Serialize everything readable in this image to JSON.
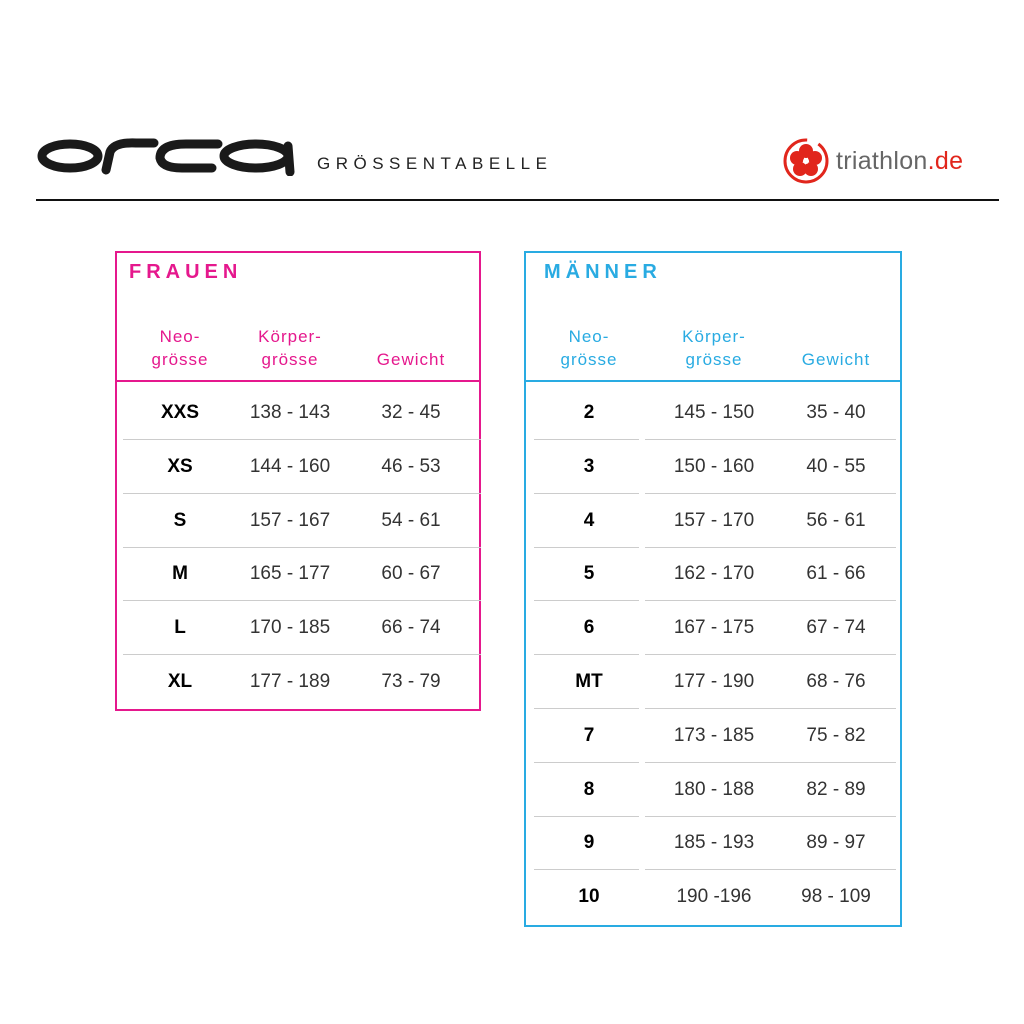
{
  "header": {
    "brand": "orca",
    "title": "GRÖSSENTABELLE",
    "partner": {
      "name": "triathlon",
      "tld": ".de"
    }
  },
  "colors": {
    "women": "#e5188d",
    "men": "#29abe2",
    "partner_red": "#e1261c"
  },
  "women": {
    "title": "FRAUEN",
    "columns": [
      {
        "l1": "Neo-",
        "l2": "grösse"
      },
      {
        "l1": "Körper-",
        "l2": "grösse"
      },
      {
        "l1": "",
        "l2": "Gewicht"
      }
    ],
    "rows": [
      [
        "XXS",
        "138 - 143",
        "32 - 45"
      ],
      [
        "XS",
        "144 - 160",
        "46 - 53"
      ],
      [
        "S",
        "157 - 167",
        "54 - 61"
      ],
      [
        "M",
        "165 - 177",
        "60 - 67"
      ],
      [
        "L",
        "170 - 185",
        "66 - 74"
      ],
      [
        "XL",
        "177 - 189",
        "73 - 79"
      ]
    ]
  },
  "men": {
    "title": "MÄNNER",
    "columns": [
      {
        "l1": "Neo-",
        "l2": "grösse"
      },
      {
        "l1": "Körper-",
        "l2": "grösse"
      },
      {
        "l1": "",
        "l2": "Gewicht"
      }
    ],
    "rows": [
      [
        "2",
        "145 - 150",
        "35 - 40"
      ],
      [
        "3",
        "150 - 160",
        "40 - 55"
      ],
      [
        "4",
        "157 - 170",
        "56 - 61"
      ],
      [
        "5",
        "162 - 170",
        "61 - 66"
      ],
      [
        "6",
        "167 - 175",
        "67 - 74"
      ],
      [
        "MT",
        "177 - 190",
        "68 - 76"
      ],
      [
        "7",
        "173 - 185",
        "75 - 82"
      ],
      [
        "8",
        "180 - 188",
        "82 - 89"
      ],
      [
        "9",
        "185 - 193",
        "89 - 97"
      ],
      [
        "10",
        "190 -196",
        "98 - 109"
      ]
    ]
  }
}
